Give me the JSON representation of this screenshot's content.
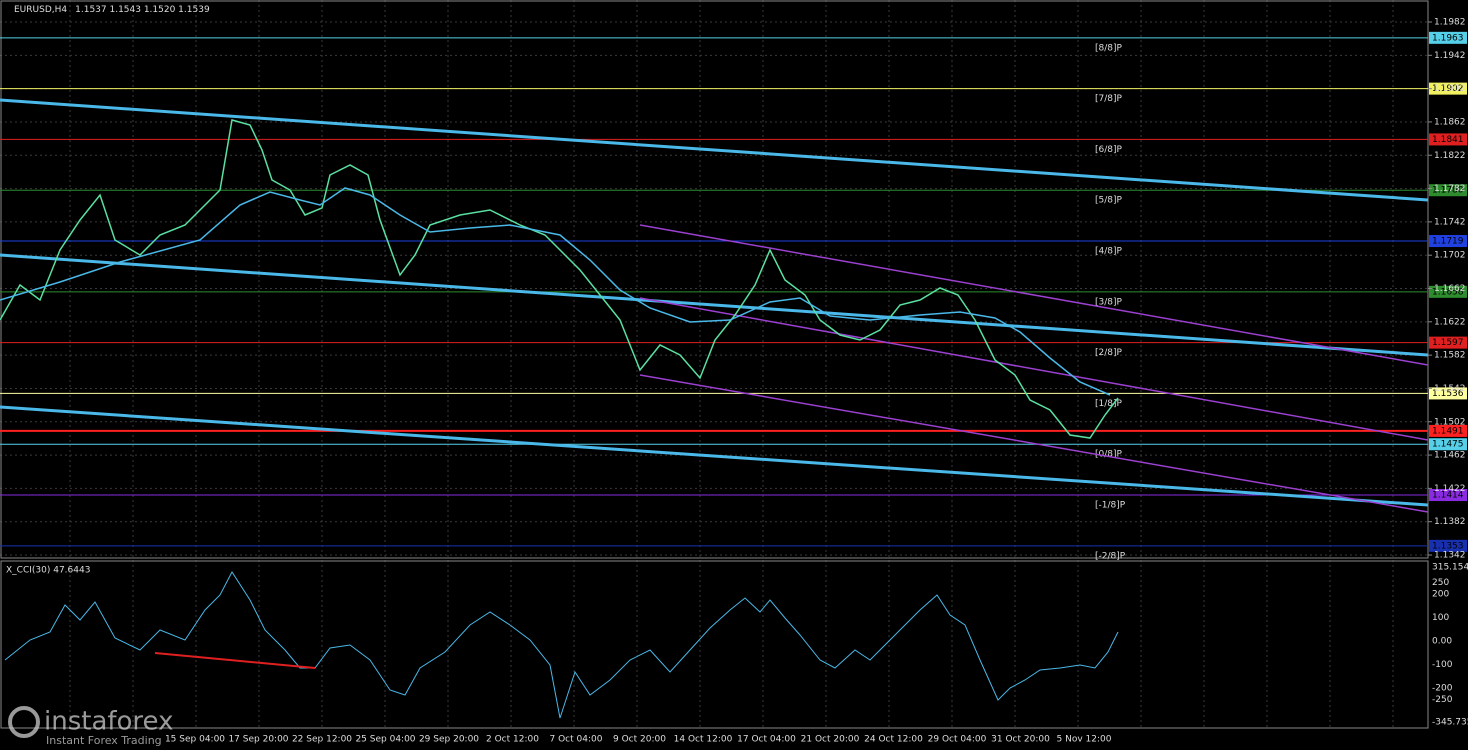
{
  "header": {
    "symbol": "EURUSD,H4",
    "ohlc": "1.1537 1.1543 1.1520 1.1539"
  },
  "price_axis": [
    "1.1982",
    "1.1942",
    "1.1902",
    "1.1862",
    "1.1822",
    "1.1782",
    "1.1742",
    "1.1702",
    "1.1662",
    "1.1622",
    "1.1582",
    "1.1542",
    "1.1502",
    "1.1462",
    "1.1422",
    "1.1382",
    "1.1342"
  ],
  "levels": [
    {
      "price": "1.1963",
      "murray": "[8/8]P",
      "color": "#55d0e8"
    },
    {
      "price": "1.1902",
      "murray": "[7/8]P",
      "color": "#f0f060"
    },
    {
      "price": "1.1841",
      "murray": "[6/8]P",
      "color": "#e02020"
    },
    {
      "price": "1.1780",
      "murray": "[5/8]P",
      "color": "#2e8b2e"
    },
    {
      "price": "1.1719",
      "murray": "[4/8]P",
      "color": "#2040e0"
    },
    {
      "price": "1.1658",
      "murray": "[3/8]P",
      "color": "#2e8b2e"
    },
    {
      "price": "1.1597",
      "murray": "[2/8]P",
      "color": "#e02020"
    },
    {
      "price": "1.1536",
      "murray": "[1/8]P",
      "color": "#ffffa0"
    },
    {
      "price": "1.1475",
      "murray": "[0/8]P",
      "color": "#55d0e8"
    },
    {
      "price": "1.1414",
      "murray": "[-1/8]P",
      "color": "#8a2be2"
    },
    {
      "price": "1.1353",
      "murray": "[-2/8]P",
      "color": "#1830b0"
    }
  ],
  "red_level": "1.1491",
  "cci": {
    "label": "X_CCI(30) 47.6443",
    "axis": [
      "315.1542",
      "250",
      "200",
      "100",
      "0.00",
      "-100",
      "-200",
      "-250",
      "-345.7354"
    ]
  },
  "dates": [
    "15 Sep 04:00",
    "17 Sep 20:00",
    "22 Sep 12:00",
    "25 Sep 04:00",
    "29 Sep 20:00",
    "2 Oct 12:00",
    "7 Oct 04:00",
    "9 Oct 20:00",
    "14 Oct 12:00",
    "17 Oct 04:00",
    "21 Oct 20:00",
    "24 Oct 12:00",
    "29 Oct 04:00",
    "31 Oct 20:00",
    "5 Nov 12:00"
  ],
  "watermark": {
    "brand": "instaforex",
    "tagline": "Instant Forex Trading"
  }
}
